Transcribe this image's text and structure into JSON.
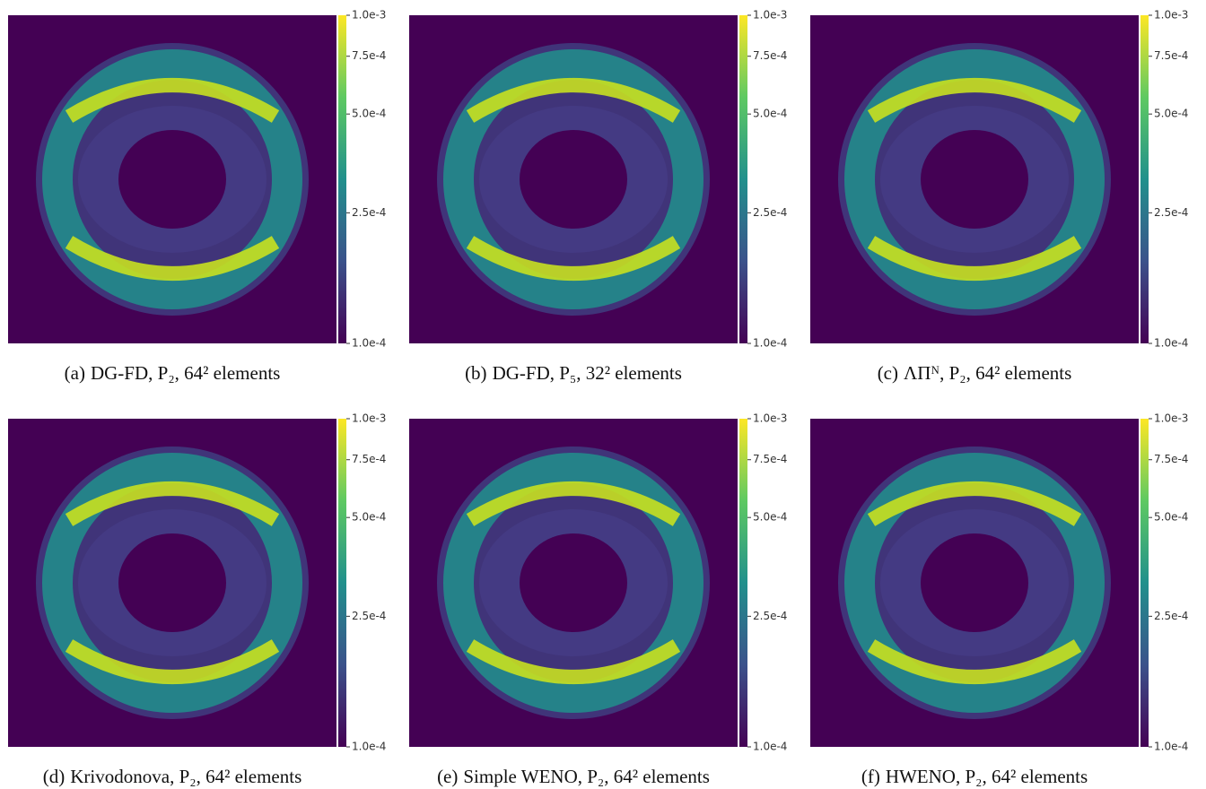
{
  "panels": [
    {
      "label": "(a)",
      "caption": "DG-FD, P₂, 64² elements"
    },
    {
      "label": "(b)",
      "caption": "DG-FD, P₅, 32² elements"
    },
    {
      "label": "(c)",
      "caption": "ΛΠᴺ, P₂, 64² elements"
    },
    {
      "label": "(d)",
      "caption": "Krivodonova, P₂, 64² elements"
    },
    {
      "label": "(e)",
      "caption": "Simple WENO, P₂, 64² elements"
    },
    {
      "label": "(f)",
      "caption": "HWENO, P₂, 64² elements"
    }
  ],
  "colorbar": {
    "scale": "log",
    "lim": [
      0.0001,
      0.001
    ],
    "ticks": [
      {
        "value": 0.001,
        "label": "1.0e-3"
      },
      {
        "value": 0.00075,
        "label": "7.5e-4"
      },
      {
        "value": 0.0005,
        "label": "5.0e-4"
      },
      {
        "value": 0.00025,
        "label": "2.5e-4"
      },
      {
        "value": 0.0001,
        "label": "1.0e-4"
      }
    ],
    "colors": [
      "#440154",
      "#3b528b",
      "#21908c",
      "#5ec962",
      "#fde725"
    ]
  }
}
